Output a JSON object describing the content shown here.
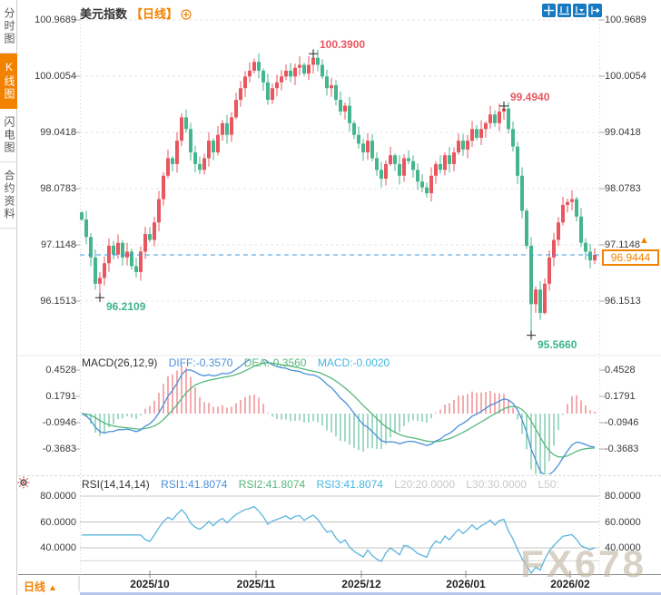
{
  "header": {
    "title": "美元指数",
    "period_tag": "【日线】"
  },
  "sidebar": {
    "tabs": [
      {
        "label": "分时图",
        "active": false
      },
      {
        "label": "K线图",
        "active": true
      },
      {
        "label": "闪电图",
        "active": false
      },
      {
        "label": "合约资料",
        "active": false
      }
    ]
  },
  "toolbar": {
    "icons": [
      "crosshair",
      "fit-range",
      "auto-scale",
      "pan-latest"
    ]
  },
  "price_axis": {
    "current": "96.9444",
    "current_marker": "▲"
  },
  "indicators": {
    "macd": {
      "title": "MACD(26,12,9)",
      "diff_label": "DIFF:-0.3570",
      "dea_label": "DEA:-0.3560",
      "macd_label": "MACD:-0.0020",
      "y_ticks": [
        0.4528,
        0.1791,
        -0.0946,
        -0.3683
      ]
    },
    "rsi": {
      "title": "RSI(14,14,14)",
      "rsi1_label": "RSI1:41.8074",
      "rsi2_label": "RSI2:41.8074",
      "rsi3_label": "RSI3:41.8074",
      "l20_label": "L20:20.0000",
      "l30_label": "L30:30.0000",
      "l50_label": "L50:",
      "y_ticks": [
        80.0,
        60.0,
        40.0
      ]
    }
  },
  "footer": {
    "period_selector": "日线",
    "period_arrow": "▲",
    "watermark": "FX678"
  },
  "colors": {
    "up": "#e8575f",
    "down": "#45b58d",
    "accent": "#f28200",
    "diff_line": "#4a90d9",
    "dea_line": "#56b87b",
    "rsi_line": "#5bb5dd",
    "current_line": "#3b9ae1",
    "grid": "#e6e6e6",
    "rsi_grid": "#c4c4c4"
  },
  "chart_data": {
    "type": "candlestick",
    "title": "美元指数 日线",
    "x_labels": [
      "2025/10",
      "2025/11",
      "2025/12",
      "2026/01",
      "2026/02"
    ],
    "y_axis": {
      "ticks": [
        100.9689,
        100.0054,
        99.0418,
        98.0783,
        97.1148,
        96.1513
      ]
    },
    "closes": [
      97.55,
      97.25,
      96.9,
      96.45,
      96.55,
      96.8,
      97.1,
      96.95,
      97.15,
      96.9,
      97.0,
      96.75,
      96.65,
      97.0,
      97.3,
      97.2,
      97.5,
      97.9,
      98.3,
      98.6,
      98.5,
      98.9,
      99.3,
      99.1,
      98.7,
      98.5,
      98.4,
      98.6,
      98.9,
      98.7,
      99.0,
      99.2,
      99.0,
      99.3,
      99.6,
      99.8,
      100.0,
      100.1,
      100.25,
      100.1,
      99.9,
      99.6,
      99.8,
      99.9,
      100.0,
      100.1,
      100.0,
      100.15,
      100.2,
      100.05,
      100.2,
      100.32,
      100.2,
      100.0,
      99.8,
      99.85,
      99.6,
      99.4,
      99.5,
      99.2,
      99.0,
      98.85,
      98.7,
      98.9,
      98.6,
      98.4,
      98.25,
      98.5,
      98.65,
      98.5,
      98.3,
      98.6,
      98.55,
      98.4,
      98.2,
      98.1,
      98.0,
      98.3,
      98.5,
      98.4,
      98.65,
      98.5,
      98.7,
      98.9,
      98.75,
      98.9,
      99.1,
      98.95,
      99.1,
      99.2,
      99.35,
      99.2,
      99.4,
      99.45,
      99.1,
      98.8,
      98.3,
      97.7,
      97.1,
      96.1,
      96.35,
      95.95,
      96.45,
      96.9,
      97.2,
      97.5,
      97.8,
      97.85,
      97.9,
      97.6,
      97.15,
      97.0,
      96.85,
      96.9444
    ],
    "last_price": 96.9444,
    "annotations": [
      {
        "index": 51,
        "value": 100.39,
        "kind": "high"
      },
      {
        "index": 93,
        "value": 99.494,
        "kind": "high"
      },
      {
        "index": 4,
        "value": 96.2109,
        "kind": "low"
      },
      {
        "index": 99,
        "value": 95.566,
        "kind": "low"
      }
    ],
    "indicators": {
      "macd": {
        "params": [
          26,
          12,
          9
        ],
        "diff": -0.357,
        "dea": -0.356,
        "macd": -0.002
      },
      "rsi": {
        "params": [
          14,
          14,
          14
        ],
        "rsi1": 41.8074,
        "rsi2": 41.8074,
        "rsi3": 41.8074,
        "l20": 20.0,
        "l30": 30.0
      }
    }
  }
}
